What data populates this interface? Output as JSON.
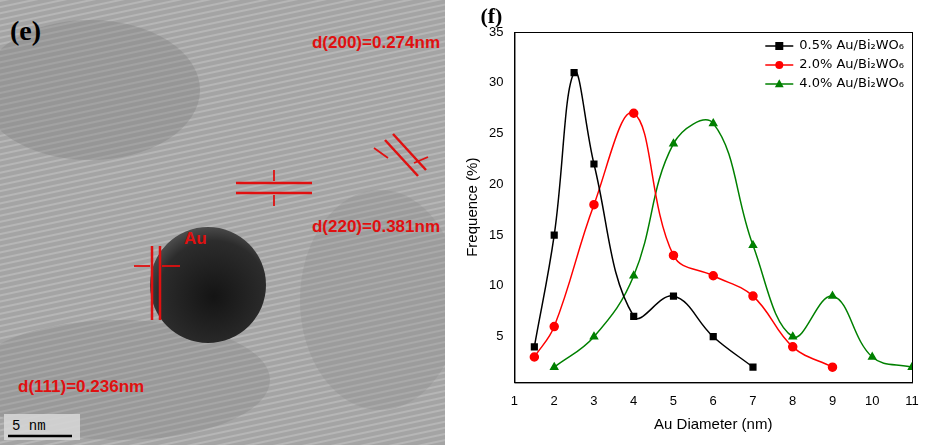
{
  "image_panel": {
    "panel_label": "(e)",
    "particle_label": "Au",
    "annotations": [
      "d(200)=0.274nm",
      "d(220)=0.381nm",
      "d(111)=0.236nm"
    ],
    "scale_bar": "5 nm"
  },
  "chart_data": {
    "type": "line",
    "panel_label": "(f)",
    "x_label": "Au Diameter (nm)",
    "y_label": "Frequence (%)",
    "xlim": [
      1,
      11
    ],
    "xticks": [
      1,
      2,
      3,
      4,
      5,
      6,
      7,
      8,
      9,
      10,
      11
    ],
    "ylim": [
      0.5,
      35
    ],
    "yticks": [
      5,
      10,
      15,
      20,
      25,
      30,
      35
    ],
    "grid": false,
    "legend": "top-right",
    "series": [
      {
        "name": "0.5% Au/Bi₂WO₆",
        "color": "#000000",
        "marker": "square",
        "line_style": "solid",
        "x": [
          1.5,
          2,
          2.5,
          3,
          4,
          5,
          6,
          7
        ],
        "values": [
          4,
          15,
          31,
          22,
          7,
          9,
          5,
          2
        ]
      },
      {
        "name": "2.0% Au/Bi₂WO₆",
        "color": "#ff0000",
        "marker": "circle",
        "line_style": "solid",
        "x": [
          1.5,
          2,
          3,
          4,
          5,
          6,
          7,
          8,
          9
        ],
        "values": [
          3,
          6,
          18,
          27,
          13,
          11,
          9,
          4,
          2
        ]
      },
      {
        "name": "4.0% Au/Bi₂WO₆",
        "color": "#008000",
        "marker": "triangle",
        "line_style": "solid",
        "x": [
          2,
          3,
          4,
          5,
          6,
          7,
          8,
          9,
          10,
          11
        ],
        "values": [
          2,
          5,
          11,
          24,
          26,
          14,
          5,
          9,
          3,
          2
        ]
      }
    ]
  }
}
